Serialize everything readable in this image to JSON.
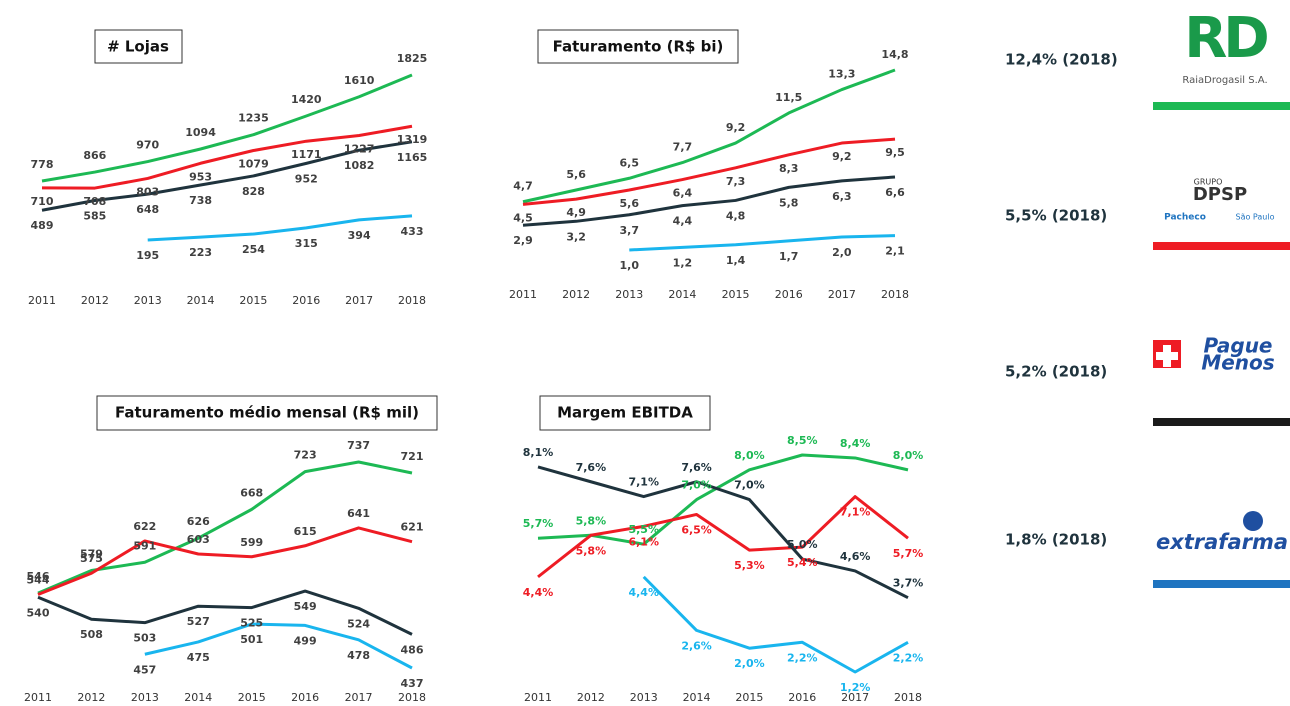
{
  "chart_data": [
    {
      "type": "line",
      "title": "# Lojas",
      "categories": [
        "2011",
        "2012",
        "2013",
        "2014",
        "2015",
        "2016",
        "2017",
        "2018"
      ],
      "series": [
        {
          "color": "#1db954",
          "values": [
            778,
            866,
            970,
            1094,
            1235,
            1420,
            1610,
            1825
          ]
        },
        {
          "color": "#ee1c24",
          "values": [
            710,
            708,
            803,
            953,
            1079,
            1171,
            1227,
            1319
          ]
        },
        {
          "color": "#1f333d",
          "values": [
            489,
            585,
            648,
            738,
            828,
            952,
            1082,
            1165
          ]
        },
        {
          "color": "#19b5ee",
          "values": [
            null,
            null,
            195,
            223,
            254,
            315,
            394,
            433
          ]
        }
      ]
    },
    {
      "type": "line",
      "title": "Faturamento (R$ bi)",
      "categories": [
        "2011",
        "2012",
        "2013",
        "2014",
        "2015",
        "2016",
        "2017",
        "2018"
      ],
      "series": [
        {
          "color": "#1db954",
          "values": [
            4.7,
            5.6,
            6.5,
            7.7,
            9.2,
            11.5,
            13.3,
            14.8
          ],
          "value_labels": [
            "4,7",
            "5,6",
            "6,5",
            "7,7",
            "9,2",
            "11,5",
            "13,3",
            "14,8"
          ]
        },
        {
          "color": "#ee1c24",
          "values": [
            4.5,
            4.9,
            5.6,
            6.4,
            7.3,
            8.3,
            9.2,
            9.5
          ],
          "value_labels": [
            "4,5",
            "4,9",
            "5,6",
            "6,4",
            "7,3",
            "8,3",
            "9,2",
            "9,5"
          ]
        },
        {
          "color": "#1f333d",
          "values": [
            2.9,
            3.2,
            3.7,
            4.4,
            4.8,
            5.8,
            6.3,
            6.6
          ],
          "value_labels": [
            "2,9",
            "3,2",
            "3,7",
            "4,4",
            "4,8",
            "5,8",
            "6,3",
            "6,6"
          ]
        },
        {
          "color": "#19b5ee",
          "values": [
            null,
            null,
            1.0,
            1.2,
            1.4,
            1.7,
            2.0,
            2.1
          ],
          "value_labels": [
            null,
            null,
            "1,0",
            "1,2",
            "1,4",
            "1,7",
            "2,0",
            "2,1"
          ]
        }
      ]
    },
    {
      "type": "line",
      "title": "Faturamento médio mensal (R$ mil)",
      "categories": [
        "2011",
        "2012",
        "2013",
        "2014",
        "2015",
        "2016",
        "2017",
        "2018"
      ],
      "series": [
        {
          "color": "#1db954",
          "values": [
            546,
            579,
            591,
            626,
            668,
            723,
            737,
            721
          ]
        },
        {
          "color": "#ee1c24",
          "values": [
            544,
            575,
            622,
            603,
            599,
            615,
            641,
            621
          ]
        },
        {
          "color": "#1f333d",
          "values": [
            540,
            508,
            503,
            527,
            525,
            549,
            524,
            486
          ]
        },
        {
          "color": "#19b5ee",
          "values": [
            null,
            null,
            457,
            475,
            501,
            499,
            478,
            437
          ]
        }
      ]
    },
    {
      "type": "line",
      "title": "Margem EBITDA",
      "colored_labels": true,
      "categories": [
        "2011",
        "2012",
        "2013",
        "2014",
        "2015",
        "2016",
        "2017",
        "2018"
      ],
      "series": [
        {
          "color": "#1db954",
          "values": [
            5.7,
            5.8,
            5.5,
            7.0,
            8.0,
            8.5,
            8.4,
            8.0
          ],
          "value_labels": [
            "5,7%",
            "5,8%",
            "5,5%",
            "7,0%",
            "8,0%",
            "8,5%",
            "8,4%",
            "8,0%"
          ]
        },
        {
          "color": "#ee1c24",
          "values": [
            4.4,
            5.8,
            6.1,
            6.5,
            5.3,
            5.4,
            7.1,
            5.7
          ],
          "value_labels": [
            "4,4%",
            "5,8%",
            "6,1%",
            "6,5%",
            "5,3%",
            "5,4%",
            "7,1%",
            "5,7%"
          ]
        },
        {
          "color": "#1f333d",
          "values": [
            8.1,
            7.6,
            7.1,
            7.6,
            7.0,
            5.0,
            4.6,
            3.7
          ],
          "value_labels": [
            "8,1%",
            "7,6%",
            "7,1%",
            "7,6%",
            "7,0%",
            "5,0%",
            "4,6%",
            "3,7%"
          ]
        },
        {
          "color": "#19b5ee",
          "values": [
            null,
            null,
            4.4,
            2.6,
            2.0,
            2.2,
            1.2,
            2.2
          ],
          "value_labels": [
            null,
            null,
            "4,4%",
            "2,6%",
            "2,0%",
            "2,2%",
            "1,2%",
            "2,2%"
          ]
        }
      ]
    }
  ],
  "sidebar": [
    {
      "share": "12,4% (2018)",
      "color": "#1db954",
      "logo": [
        "RD",
        "RaiaDrogasil S.A."
      ]
    },
    {
      "share": "5,5% (2018)",
      "color": "#ee1c24",
      "logo": [
        "GRUPO",
        "DPSP",
        "Pacheco",
        "São Paulo"
      ]
    },
    {
      "share": "5,2% (2018)",
      "color": "#1a1a1a",
      "logo": [
        "Pague",
        "Menos"
      ]
    },
    {
      "share": "1,8% (2018)",
      "color": "#1f74c0",
      "logo": [
        "extrafarma"
      ]
    }
  ]
}
